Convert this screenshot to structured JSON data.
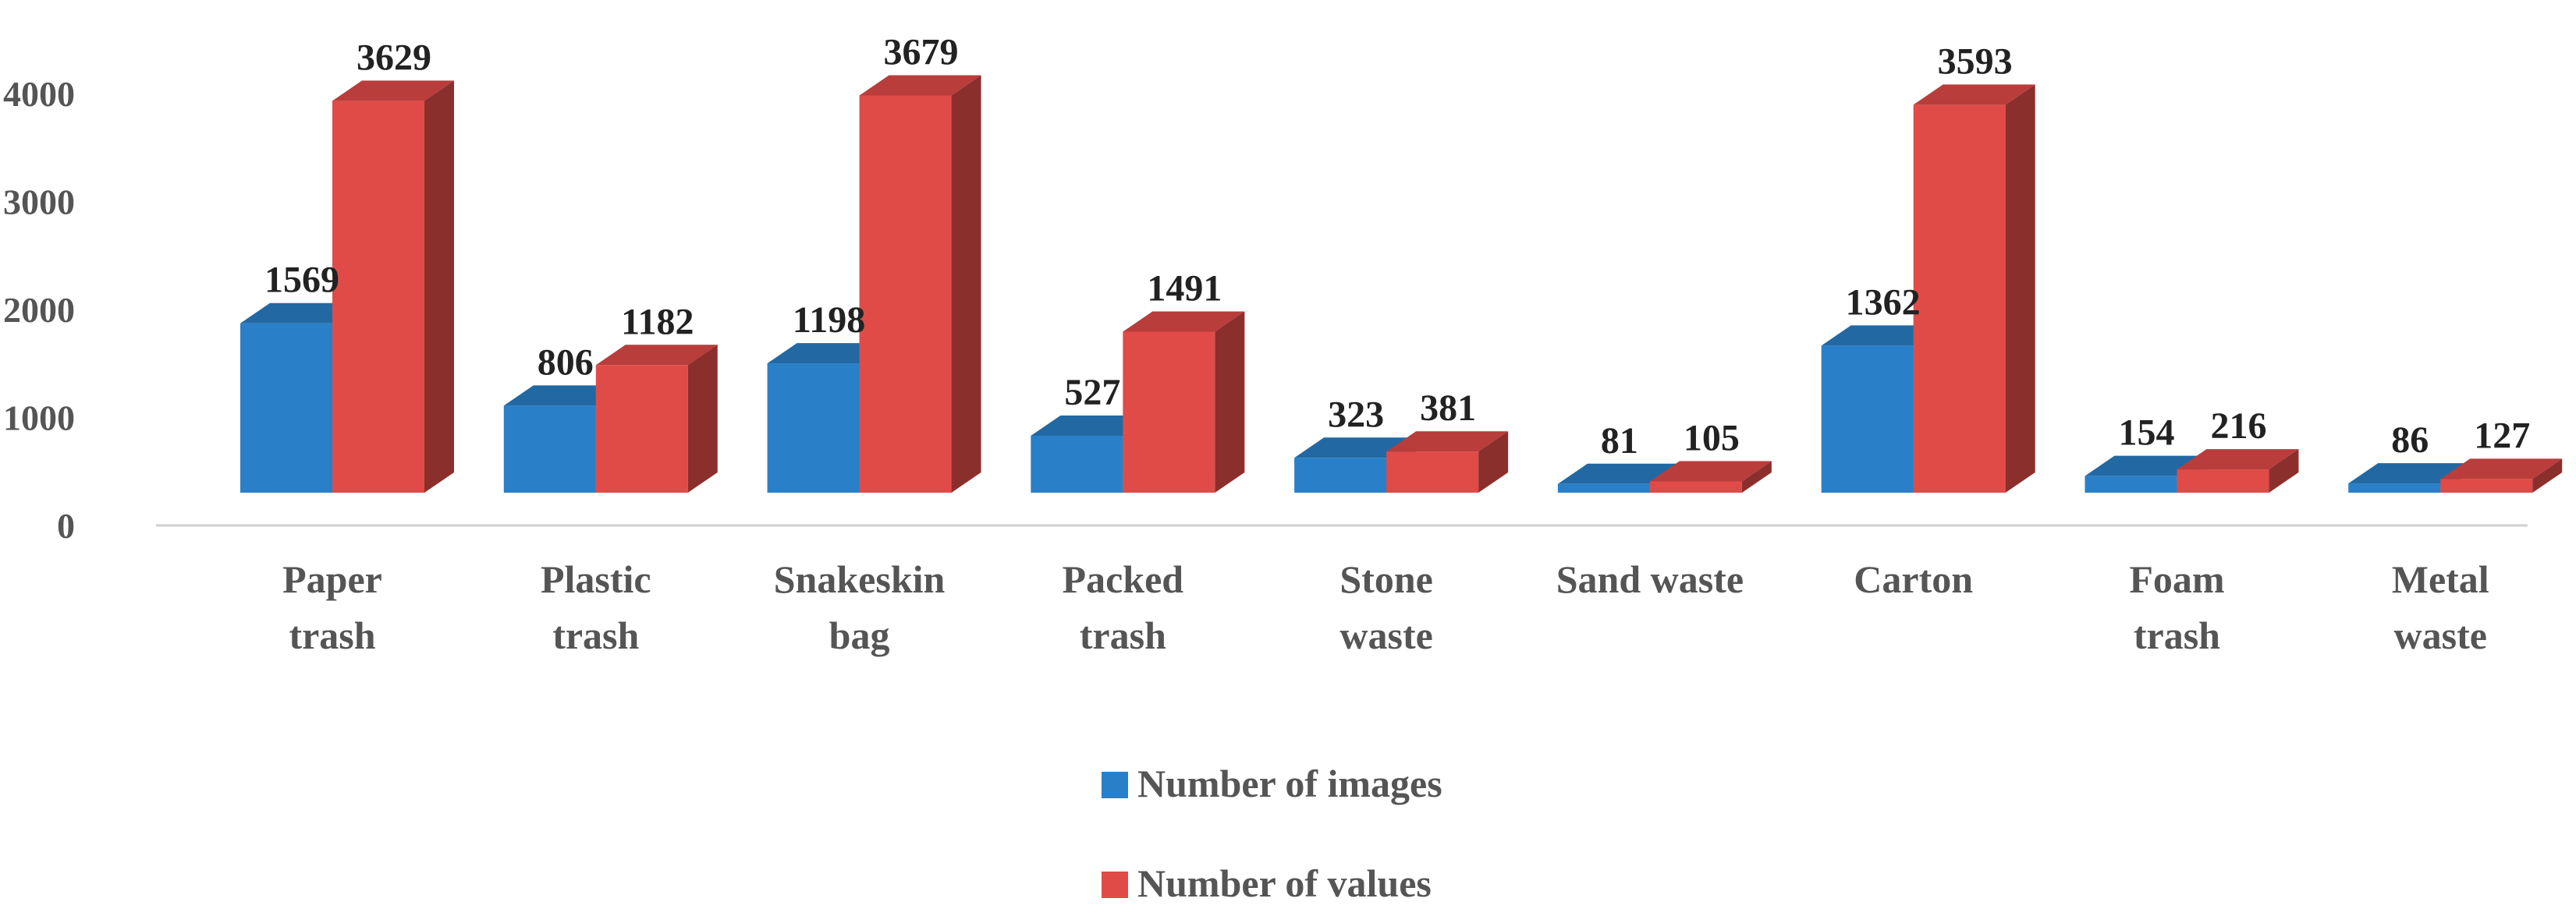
{
  "chart_data": {
    "type": "bar",
    "title": "",
    "xlabel": "",
    "ylabel": "",
    "ylim": [
      0,
      4000
    ],
    "yticks": [
      0,
      1000,
      2000,
      3000,
      4000
    ],
    "grid": false,
    "legend_position": "bottom",
    "categories": [
      [
        "Paper",
        "trash"
      ],
      [
        "Plastic",
        "trash"
      ],
      [
        "Snakeskin",
        "bag"
      ],
      [
        "Packed",
        "trash"
      ],
      [
        "Stone",
        "waste"
      ],
      [
        "Sand waste"
      ],
      [
        "Carton"
      ],
      [
        "Foam",
        "trash"
      ],
      [
        "Metal",
        "waste"
      ]
    ],
    "series": [
      {
        "name": "Number of images",
        "color": "#2980C8",
        "values": [
          1569,
          806,
          1198,
          527,
          323,
          81,
          1362,
          154,
          86
        ]
      },
      {
        "name": "Number of values",
        "color": "#E04B48",
        "values": [
          3629,
          1182,
          3679,
          1491,
          381,
          105,
          3593,
          216,
          127
        ]
      }
    ]
  }
}
